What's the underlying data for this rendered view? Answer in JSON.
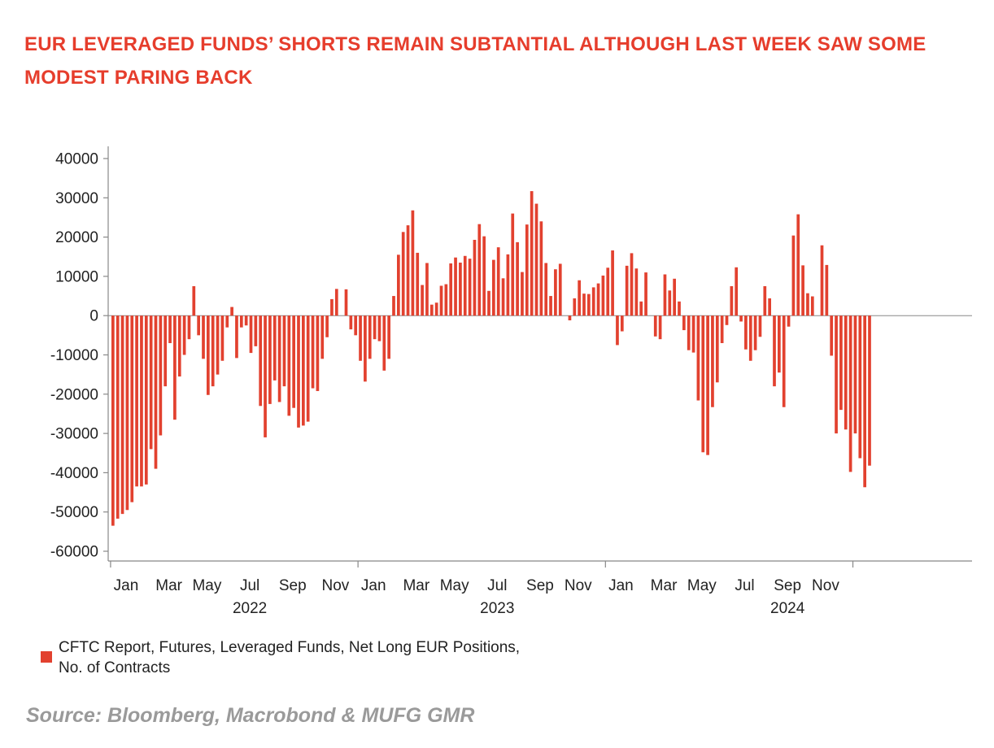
{
  "title": "EUR LEVERAGED FUNDS’ SHORTS REMAIN SUBTANTIAL ALTHOUGH LAST WEEK SAW SOME MODEST PARING BACK",
  "source": "Source: Bloomberg, Macrobond & MUFG GMR",
  "legend_label": "CFTC Report, Futures, Leveraged Funds, Net Long EUR Positions, No. of Contracts",
  "colors": {
    "bar": "#e2412f",
    "title": "#e63d2c",
    "axis": "#888888",
    "source": "#9a9a9a"
  },
  "chart_data": {
    "type": "bar",
    "frequency": "weekly",
    "series": [
      {
        "name": "CFTC Report, Futures, Leveraged Funds, Net Long EUR Positions, No. of Contracts",
        "values": [
          -53500,
          -51700,
          -50500,
          -49500,
          -47500,
          -43500,
          -43500,
          -43000,
          -34000,
          -39000,
          -30500,
          -18000,
          -7000,
          -26500,
          -15500,
          -10000,
          -6000,
          7500,
          -5000,
          -11000,
          -20200,
          -18000,
          -15000,
          -11500,
          -3000,
          2200,
          -10800,
          -3000,
          -2500,
          -9500,
          -7800,
          -23000,
          -31000,
          -22500,
          -16500,
          -22000,
          -18000,
          -25500,
          -23500,
          -28500,
          -28000,
          -27000,
          -18500,
          -19200,
          -11000,
          -5500,
          4200,
          6800,
          0,
          6700,
          -3500,
          -5000,
          -11500,
          -16800,
          -11000,
          -6000,
          -6500,
          -14000,
          -11000,
          5000,
          15500,
          21300,
          23000,
          26800,
          16000,
          7800,
          13400,
          2800,
          3300,
          7600,
          8000,
          13300,
          14800,
          13500,
          15200,
          14500,
          19300,
          23300,
          20200,
          6300,
          14200,
          17400,
          9500,
          15600,
          26000,
          18700,
          11100,
          23200,
          31700,
          28500,
          24000,
          13400,
          5000,
          11800,
          13200,
          0,
          -1200,
          4400,
          9000,
          5600,
          5500,
          7200,
          8200,
          10200,
          12200,
          16600,
          -7500,
          -4000,
          12700,
          15900,
          12000,
          3600,
          11000,
          0,
          -5300,
          -6000,
          10500,
          6400,
          9400,
          3600,
          -3700,
          -8800,
          -9400,
          -21600,
          -34800,
          -35500,
          -23300,
          -17000,
          -7000,
          -2400,
          7500,
          12300,
          -1500,
          -8600,
          -11500,
          -8800,
          -5400,
          7500,
          4400,
          -18000,
          -14500,
          -23300,
          -2800,
          20400,
          25800,
          12800,
          5700,
          4900,
          0,
          17900,
          12900,
          -10200,
          -30000,
          -24000,
          -29000,
          -39800,
          -30000,
          -36300,
          -43700,
          -38200
        ]
      }
    ],
    "y_ticks": [
      40000,
      30000,
      20000,
      10000,
      0,
      -10000,
      -20000,
      -30000,
      -40000,
      -50000,
      -60000
    ],
    "ylim": [
      -62500,
      42000
    ],
    "x_month_labels": [
      "Jan",
      "Mar",
      "May",
      "Jul",
      "Sep",
      "Nov",
      "Jan",
      "Mar",
      "May",
      "Jul",
      "Sep",
      "Nov",
      "Jan",
      "Mar",
      "May",
      "Jul",
      "Sep",
      "Nov"
    ],
    "x_month_label_positions": [
      0,
      9,
      17,
      26,
      35,
      44,
      52,
      61,
      69,
      78,
      87,
      95,
      104,
      113,
      121,
      130,
      139,
      147
    ],
    "x_year_labels": [
      "2022",
      "2023",
      "2024"
    ],
    "x_year_label_positions": [
      26,
      78,
      139
    ],
    "year_boundaries": [
      0,
      52,
      104,
      156
    ],
    "grid": false,
    "legend_position": "bottom-left",
    "xlabel": "",
    "ylabel": ""
  }
}
